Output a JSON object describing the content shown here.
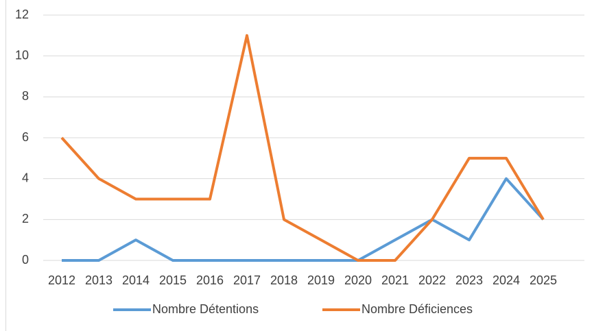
{
  "chart_data": {
    "type": "line",
    "categories": [
      "2012",
      "2013",
      "2014",
      "2015",
      "2016",
      "2017",
      "2018",
      "2019",
      "2020",
      "2021",
      "2022",
      "2023",
      "2024",
      "2025",
      null
    ],
    "series": [
      {
        "name": "Nombre Détentions",
        "color": "#5b9bd5",
        "values": [
          0,
          0,
          1,
          0,
          0,
          0,
          0,
          0,
          0,
          1,
          2,
          1,
          4,
          2,
          null
        ]
      },
      {
        "name": "Nombre Déficiences",
        "color": "#ed7d31",
        "values": [
          6,
          4,
          3,
          3,
          3,
          11,
          2,
          1,
          0,
          0,
          2,
          5,
          5,
          2,
          null
        ]
      }
    ],
    "ylim": [
      0,
      12
    ],
    "yticks": [
      0,
      2,
      4,
      6,
      8,
      10,
      12
    ],
    "grid": true,
    "legend": "bottom"
  }
}
